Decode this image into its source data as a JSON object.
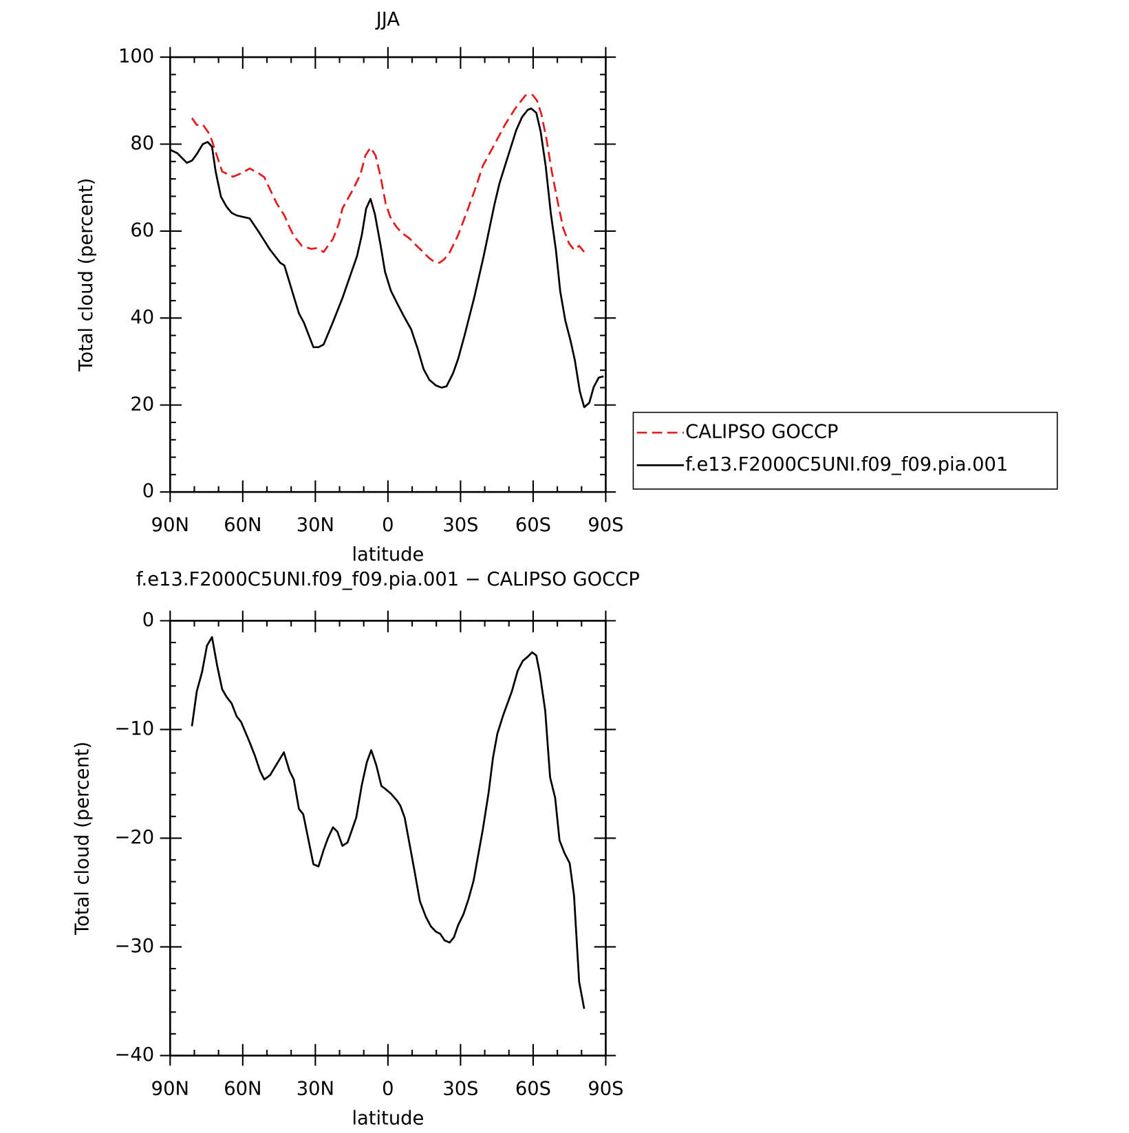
{
  "chart_data": [
    {
      "type": "line",
      "title": "JJA",
      "xlabel": "latitude",
      "ylabel": "Total cloud (percent)",
      "xlim": [
        90,
        -90
      ],
      "xticks": [
        {
          "value": 90,
          "label": "90N"
        },
        {
          "value": 60,
          "label": "60N"
        },
        {
          "value": 30,
          "label": "30N"
        },
        0,
        {
          "value": -30,
          "label": "30S"
        },
        {
          "value": -60,
          "label": "60S"
        },
        {
          "value": -90,
          "label": "90S"
        }
      ],
      "ylim": [
        0,
        100
      ],
      "yticks": [
        0,
        20,
        40,
        60,
        80,
        100
      ],
      "series": [
        {
          "name": "CALIPSO GOCCP",
          "color": "#e41a1c",
          "dashed": true,
          "x": [
            81,
            79,
            76.5,
            73.6,
            71.2,
            68.5,
            64,
            61,
            57.1,
            53.2,
            51.1,
            49,
            46,
            42.8,
            40.7,
            38.9,
            35.6,
            31.7,
            29.3,
            26.6,
            22.7,
            20.3,
            18.8,
            14.6,
            11.4,
            9.3,
            7.2,
            5.1,
            3,
            0.9,
            -1.2,
            -3.6,
            -5.7,
            -8.7,
            -10.8,
            -13.8,
            -16.8,
            -19.2,
            -21.3,
            -23.4,
            -25.5,
            -29,
            -32.6,
            -36.5,
            -39.2,
            -44,
            -48.4,
            -52.6,
            -56.8,
            -59.8,
            -61.6,
            -63.4,
            -65.5,
            -67.6,
            -70,
            -72.4,
            -74.8,
            -76.9,
            -79,
            -81.1
          ],
          "values": [
            86.0,
            84.4,
            84.5,
            82.2,
            78.2,
            73.7,
            72.5,
            73.2,
            74.4,
            73.2,
            72.4,
            69.9,
            66.4,
            63.6,
            60.9,
            58.9,
            56.6,
            55.9,
            56.1,
            55.2,
            58.2,
            61.7,
            65.2,
            69.4,
            73.0,
            77.4,
            79.2,
            77.4,
            72.4,
            66.2,
            62.9,
            60.9,
            59.6,
            58.4,
            57.2,
            55.6,
            53.9,
            52.9,
            52.7,
            53.6,
            55.1,
            59.1,
            64.4,
            70.4,
            75.0,
            79.9,
            84.5,
            88.2,
            91.2,
            91.3,
            90.0,
            86.9,
            81.2,
            74.0,
            67.1,
            60.7,
            57.2,
            55.7,
            56.6,
            55.2
          ]
        },
        {
          "name": "f.e13.F2000C5UNI.f09_f09.pia.001",
          "color": "#000000",
          "dashed": false,
          "x": [
            90,
            87,
            83.1,
            81,
            79,
            76.5,
            74.5,
            72.7,
            71.2,
            69,
            66.7,
            64.6,
            62.5,
            57.1,
            53.5,
            48.7,
            44.5,
            42.8,
            36.8,
            34.7,
            30.8,
            28.7,
            26.6,
            22.7,
            18.8,
            15.5,
            12.8,
            10.8,
            9,
            7.2,
            5.4,
            3,
            1.2,
            -1.2,
            -3.6,
            -6.6,
            -9.6,
            -12.3,
            -14.7,
            -17.1,
            -19.8,
            -22.2,
            -24.2,
            -26.9,
            -29,
            -31.7,
            -35.6,
            -39.5,
            -44,
            -46.1,
            -50,
            -53,
            -55.4,
            -57.8,
            -59.2,
            -61.3,
            -63.1,
            -65.2,
            -67.3,
            -69.4,
            -71.2,
            -73.3,
            -75.4,
            -77.2,
            -79.3,
            -81.1,
            -83.2,
            -85,
            -87.1,
            -89.1
          ],
          "values": [
            78.7,
            77.9,
            75.7,
            76.2,
            77.7,
            80.0,
            80.5,
            79.4,
            73.7,
            67.9,
            65.6,
            64.2,
            63.6,
            62.9,
            59.9,
            55.7,
            52.7,
            52.1,
            41.1,
            38.9,
            33.3,
            33.3,
            33.9,
            39.1,
            44.6,
            49.9,
            54.2,
            59.1,
            65.2,
            67.4,
            63.9,
            56.6,
            50.6,
            46.3,
            43.6,
            40.4,
            37.4,
            32.9,
            28.3,
            25.8,
            24.5,
            24.0,
            24.3,
            27.3,
            30.6,
            36.1,
            44.6,
            54.1,
            66.1,
            71.0,
            77.9,
            83.2,
            86.2,
            87.9,
            88.2,
            87.2,
            82.9,
            74.9,
            64.1,
            55.7,
            46.1,
            39.4,
            34.9,
            30.4,
            23.1,
            19.5,
            20.5,
            24.1,
            26.3,
            26.6
          ]
        }
      ]
    },
    {
      "type": "line",
      "title": "f.e13.F2000C5UNI.f09_f09.pia.001 − CALIPSO GOCCP",
      "xlabel": "latitude",
      "ylabel": "Total cloud (percent)",
      "xlim": [
        90,
        -90
      ],
      "xticks": [
        {
          "value": 90,
          "label": "90N"
        },
        {
          "value": 60,
          "label": "60N"
        },
        {
          "value": 30,
          "label": "30N"
        },
        0,
        {
          "value": -30,
          "label": "30S"
        },
        {
          "value": -60,
          "label": "60S"
        },
        {
          "value": -90,
          "label": "90S"
        }
      ],
      "ylim": [
        -40,
        0
      ],
      "yticks": [
        {
          "value": -40,
          "label": "−40"
        },
        {
          "value": -30,
          "label": "−30"
        },
        {
          "value": -20,
          "label": "−20"
        },
        {
          "value": -10,
          "label": "−10"
        },
        0
      ],
      "series": [
        {
          "color": "#000000",
          "dashed": false,
          "x": [
            81,
            79,
            76.8,
            74.8,
            72.7,
            70.6,
            68.5,
            66.7,
            64.6,
            62.5,
            60.7,
            57.1,
            55,
            52.9,
            51.1,
            48.7,
            46,
            43,
            40.7,
            38.9,
            36.8,
            35,
            30.8,
            28.7,
            26.6,
            24.8,
            22.7,
            20.9,
            18.8,
            16.7,
            13.1,
            10.8,
            8.7,
            6.9,
            4.8,
            2.7,
            0.9,
            -1.2,
            -3.6,
            -5.1,
            -6.9,
            -10.8,
            -13.2,
            -15.6,
            -17.7,
            -19.8,
            -21.6,
            -23.4,
            -25.5,
            -27.3,
            -29,
            -31.2,
            -33.3,
            -35.4,
            -39.2,
            -41.6,
            -43.4,
            -45.2,
            -47.6,
            -51.2,
            -53.6,
            -55.7,
            -57.8,
            -59.6,
            -61.3,
            -62.8,
            -65,
            -67,
            -69.1,
            -70.9,
            -73,
            -75.1,
            -76.9,
            -79,
            -81.1
          ],
          "values": [
            -9.7,
            -6.5,
            -4.7,
            -2.3,
            -1.5,
            -4.1,
            -6.3,
            -7.0,
            -7.6,
            -8.8,
            -9.3,
            -11.2,
            -12.4,
            -13.8,
            -14.6,
            -14.2,
            -13.2,
            -12.1,
            -13.8,
            -14.6,
            -17.3,
            -17.8,
            -22.4,
            -22.6,
            -21.1,
            -20.0,
            -19.0,
            -19.4,
            -20.7,
            -20.4,
            -18.1,
            -15.1,
            -13.0,
            -11.9,
            -13.3,
            -15.2,
            -15.5,
            -15.9,
            -16.5,
            -17.0,
            -18.1,
            -22.8,
            -25.8,
            -27.2,
            -28.1,
            -28.6,
            -28.8,
            -29.4,
            -29.6,
            -29.1,
            -28.0,
            -27.0,
            -25.6,
            -23.9,
            -19.2,
            -15.8,
            -12.6,
            -10.4,
            -8.7,
            -6.5,
            -4.6,
            -3.7,
            -3.3,
            -2.9,
            -3.2,
            -4.9,
            -8.3,
            -14.4,
            -16.3,
            -20.2,
            -21.4,
            -22.3,
            -25.3,
            -33.2,
            -35.7
          ]
        }
      ]
    }
  ]
}
